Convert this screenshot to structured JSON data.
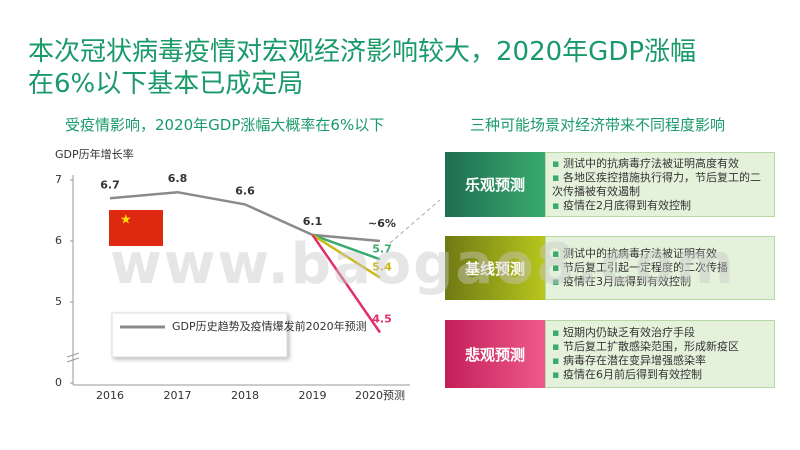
{
  "title": [
    "本次冠状病毒疫情对宏观经济影响较大，2020年GDP涨幅",
    "在6%以下基本已成定局"
  ],
  "chart_data": {
    "type": "line",
    "title": "受疫情影响，2020年GDP涨幅大概率在6%以下",
    "y_label": "GDP历年增长率",
    "categories": [
      "2016",
      "2017",
      "2018",
      "2019",
      "2020预测"
    ],
    "ylim": [
      0,
      7.2
    ],
    "y_break": [
      0.6,
      4.5
    ],
    "yticks": [
      0,
      5,
      6,
      7
    ],
    "series": [
      {
        "name": "GDP历史趋势及疫情爆发前2020年预测",
        "color": "#8a8a8a",
        "values": [
          6.7,
          6.8,
          6.6,
          6.1,
          6
        ],
        "value_labels": [
          "6.7",
          "6.8",
          "6.6",
          "6.1",
          "~6%"
        ]
      },
      {
        "color": "#3aaa6e",
        "values": [
          null,
          null,
          null,
          6.1,
          5.7
        ],
        "value_labels": [
          null,
          null,
          null,
          null,
          "5.7"
        ]
      },
      {
        "color": "#c9b81a",
        "values": [
          null,
          null,
          null,
          6.1,
          5.4
        ],
        "value_labels": [
          null,
          null,
          null,
          null,
          "5.4"
        ]
      },
      {
        "color": "#e0306a",
        "values": [
          null,
          null,
          null,
          6.1,
          4.5
        ],
        "value_labels": [
          null,
          null,
          null,
          null,
          "4.5"
        ]
      }
    ]
  },
  "scenarios_title": "三种可能场景对经济带来不同程度影响",
  "scenarios": [
    {
      "label": "乐观预测",
      "bullets": [
        "测试中的抗病毒疗法被证明高度有效",
        "各地区疾控措施执行得力，节后复工的二次传播被有效遏制",
        "疫情在2月底得到有效控制"
      ]
    },
    {
      "label": "基线预测",
      "bullets": [
        "测试中的抗病毒疗法被证明有效",
        "节后复工引起一定程度的二次传播",
        "疫情在3月底得到有效控制"
      ]
    },
    {
      "label": "悲观预测",
      "bullets": [
        "短期内仍缺乏有效治疗手段",
        "节后复工扩散感染范围，形成新疫区",
        "病毒存在潜在变异增强感染率",
        "疫情在6月前后得到有效控制"
      ]
    }
  ],
  "watermark": "www.baogao8.com"
}
